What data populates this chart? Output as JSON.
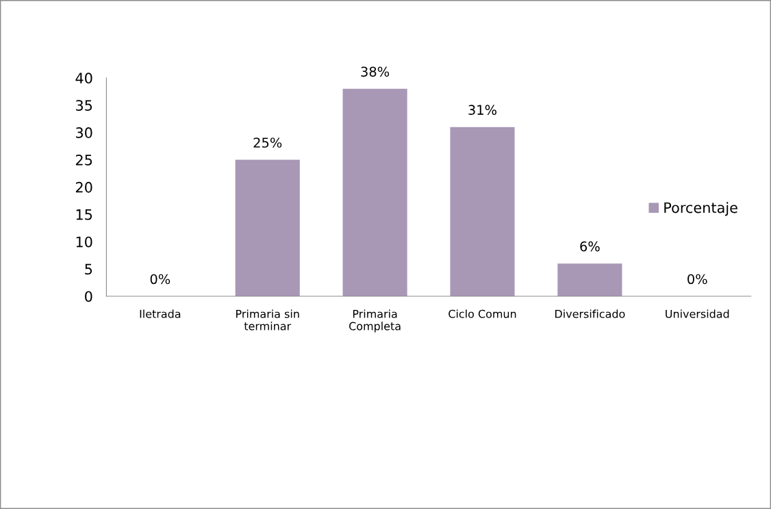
{
  "chart_data": {
    "type": "bar",
    "categories": [
      "Iletrada",
      "Primaria sin\nterminar",
      "Primaria\nCompleta",
      "Ciclo Comun",
      "Diversificado",
      "Universidad"
    ],
    "series": [
      {
        "name": "Porcentaje",
        "color": "#a897b5",
        "values": [
          0,
          25,
          38,
          31,
          6,
          0
        ],
        "value_labels": [
          "0%",
          "25%",
          "38%",
          "31%",
          "6%",
          "0%"
        ]
      }
    ],
    "ylim": [
      0,
      40
    ],
    "yticks": [
      0,
      5,
      10,
      15,
      20,
      25,
      30,
      35,
      40
    ],
    "grid": false,
    "legend": "right"
  }
}
